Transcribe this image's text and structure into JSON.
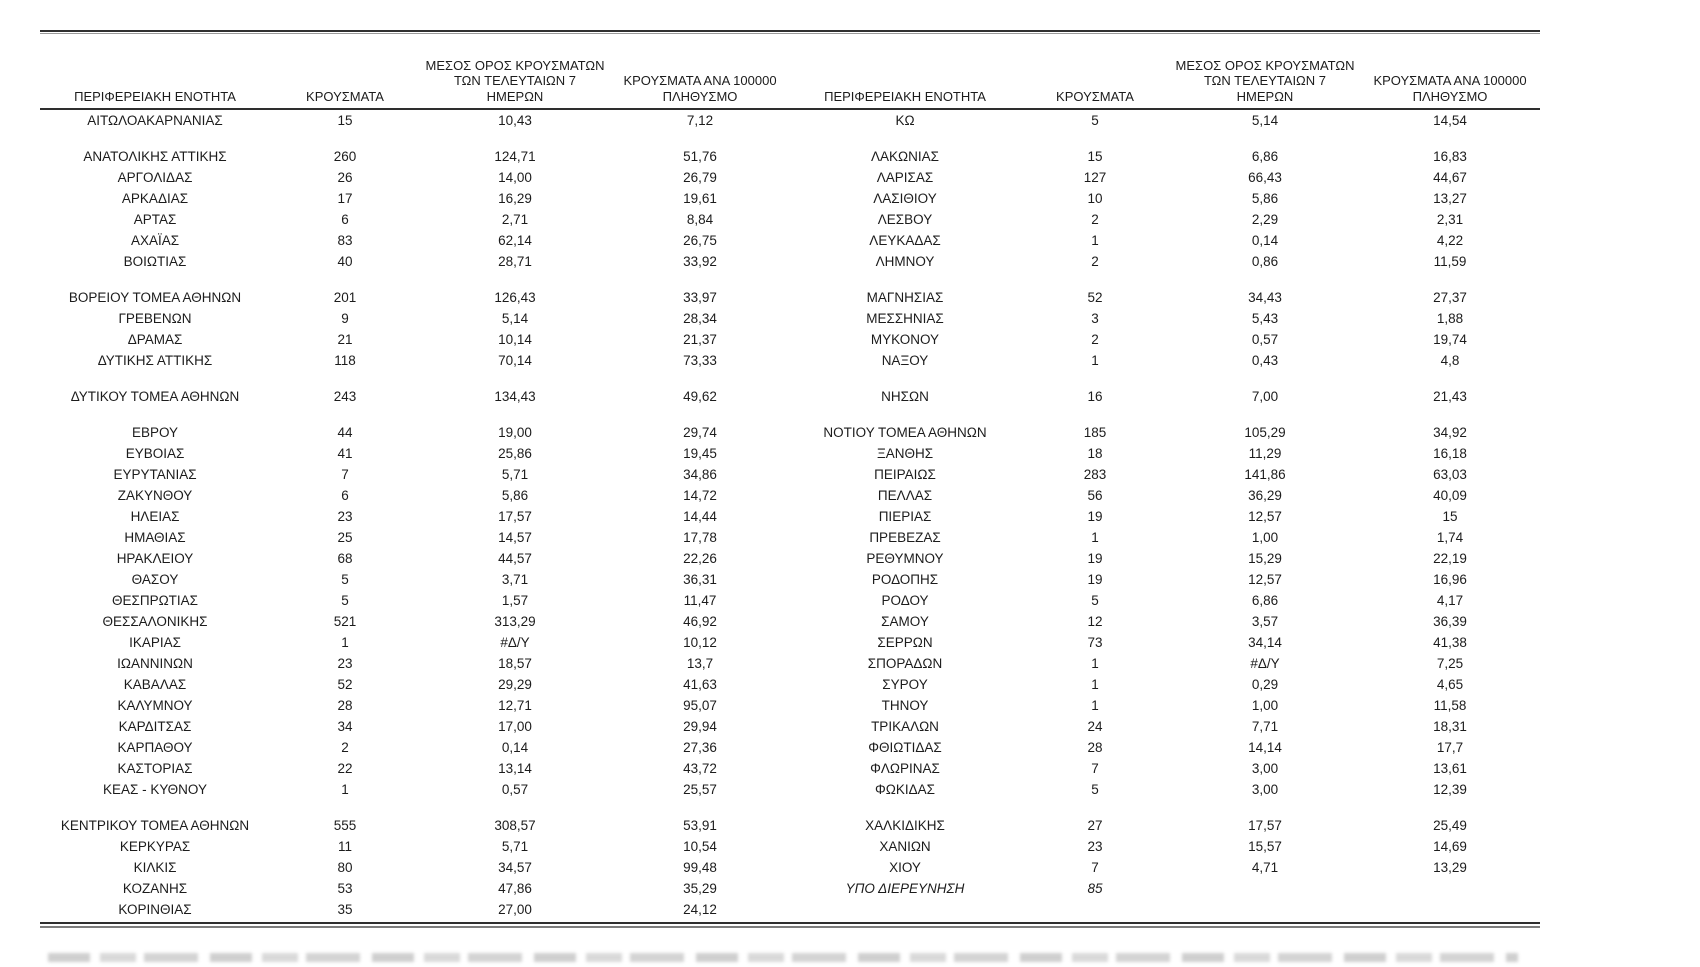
{
  "table": {
    "column_headers": {
      "region": "ΠΕΡΙΦΕΡΕΙΑΚΗ ΕΝΟΤΗΤΑ",
      "cases": "ΚΡΟΥΣΜΑΤΑ",
      "avg7": "ΜΕΣΟΣ ΟΡΟΣ ΚΡΟΥΣΜΑΤΩΝ\nΤΩΝ ΤΕΛΕΥΤΑΙΩΝ 7\nΗΜΕΡΩΝ",
      "per100k": "ΚΡΟΥΣΜΑΤΑ ΑΝΑ 100000\nΠΛΗΘΥΣΜΟ"
    },
    "missing_value_marker": "#Δ/Υ",
    "rows": [
      {
        "left": {
          "region": "ΑΙΤΩΛΟΑΚΑΡΝΑΝΙΑΣ",
          "cases": "15",
          "avg7": "10,43",
          "per100k": "7,12"
        },
        "right": {
          "region": "ΚΩ",
          "cases": "5",
          "avg7": "5,14",
          "per100k": "14,54"
        }
      },
      "gap",
      {
        "left": {
          "region": "ΑΝΑΤΟΛΙΚΗΣ ΑΤΤΙΚΗΣ",
          "cases": "260",
          "avg7": "124,71",
          "per100k": "51,76"
        },
        "right": {
          "region": "ΛΑΚΩΝΙΑΣ",
          "cases": "15",
          "avg7": "6,86",
          "per100k": "16,83"
        }
      },
      {
        "left": {
          "region": "ΑΡΓΟΛΙΔΑΣ",
          "cases": "26",
          "avg7": "14,00",
          "per100k": "26,79"
        },
        "right": {
          "region": "ΛΑΡΙΣΑΣ",
          "cases": "127",
          "avg7": "66,43",
          "per100k": "44,67"
        }
      },
      {
        "left": {
          "region": "ΑΡΚΑΔΙΑΣ",
          "cases": "17",
          "avg7": "16,29",
          "per100k": "19,61"
        },
        "right": {
          "region": "ΛΑΣΙΘΙΟΥ",
          "cases": "10",
          "avg7": "5,86",
          "per100k": "13,27"
        }
      },
      {
        "left": {
          "region": "ΑΡΤΑΣ",
          "cases": "6",
          "avg7": "2,71",
          "per100k": "8,84"
        },
        "right": {
          "region": "ΛΕΣΒΟΥ",
          "cases": "2",
          "avg7": "2,29",
          "per100k": "2,31"
        }
      },
      {
        "left": {
          "region": "ΑΧΑΪΑΣ",
          "cases": "83",
          "avg7": "62,14",
          "per100k": "26,75"
        },
        "right": {
          "region": "ΛΕΥΚΑΔΑΣ",
          "cases": "1",
          "avg7": "0,14",
          "per100k": "4,22"
        }
      },
      {
        "left": {
          "region": "ΒΟΙΩΤΙΑΣ",
          "cases": "40",
          "avg7": "28,71",
          "per100k": "33,92"
        },
        "right": {
          "region": "ΛΗΜΝΟΥ",
          "cases": "2",
          "avg7": "0,86",
          "per100k": "11,59"
        }
      },
      "gap",
      {
        "left": {
          "region": "ΒΟΡΕΙΟΥ ΤΟΜΕΑ ΑΘΗΝΩΝ",
          "cases": "201",
          "avg7": "126,43",
          "per100k": "33,97"
        },
        "right": {
          "region": "ΜΑΓΝΗΣΙΑΣ",
          "cases": "52",
          "avg7": "34,43",
          "per100k": "27,37"
        }
      },
      {
        "left": {
          "region": "ΓΡΕΒΕΝΩΝ",
          "cases": "9",
          "avg7": "5,14",
          "per100k": "28,34"
        },
        "right": {
          "region": "ΜΕΣΣΗΝΙΑΣ",
          "cases": "3",
          "avg7": "5,43",
          "per100k": "1,88"
        }
      },
      {
        "left": {
          "region": "ΔΡΑΜΑΣ",
          "cases": "21",
          "avg7": "10,14",
          "per100k": "21,37"
        },
        "right": {
          "region": "ΜΥΚΟΝΟΥ",
          "cases": "2",
          "avg7": "0,57",
          "per100k": "19,74"
        }
      },
      {
        "left": {
          "region": "ΔΥΤΙΚΗΣ ΑΤΤΙΚΗΣ",
          "cases": "118",
          "avg7": "70,14",
          "per100k": "73,33"
        },
        "right": {
          "region": "ΝΑΞΟΥ",
          "cases": "1",
          "avg7": "0,43",
          "per100k": "4,8"
        }
      },
      "gap",
      {
        "left": {
          "region": "ΔΥΤΙΚΟΥ ΤΟΜΕΑ ΑΘΗΝΩΝ",
          "cases": "243",
          "avg7": "134,43",
          "per100k": "49,62"
        },
        "right": {
          "region": "ΝΗΣΩΝ",
          "cases": "16",
          "avg7": "7,00",
          "per100k": "21,43"
        }
      },
      "gap",
      {
        "left": {
          "region": "ΕΒΡΟΥ",
          "cases": "44",
          "avg7": "19,00",
          "per100k": "29,74"
        },
        "right": {
          "region": "ΝΟΤΙΟΥ ΤΟΜΕΑ ΑΘΗΝΩΝ",
          "cases": "185",
          "avg7": "105,29",
          "per100k": "34,92"
        }
      },
      {
        "left": {
          "region": "ΕΥΒΟΙΑΣ",
          "cases": "41",
          "avg7": "25,86",
          "per100k": "19,45"
        },
        "right": {
          "region": "ΞΑΝΘΗΣ",
          "cases": "18",
          "avg7": "11,29",
          "per100k": "16,18"
        }
      },
      {
        "left": {
          "region": "ΕΥΡΥΤΑΝΙΑΣ",
          "cases": "7",
          "avg7": "5,71",
          "per100k": "34,86"
        },
        "right": {
          "region": "ΠΕΙΡΑΙΩΣ",
          "cases": "283",
          "avg7": "141,86",
          "per100k": "63,03"
        }
      },
      {
        "left": {
          "region": "ΖΑΚΥΝΘΟΥ",
          "cases": "6",
          "avg7": "5,86",
          "per100k": "14,72"
        },
        "right": {
          "region": "ΠΕΛΛΑΣ",
          "cases": "56",
          "avg7": "36,29",
          "per100k": "40,09"
        }
      },
      {
        "left": {
          "region": "ΗΛΕΙΑΣ",
          "cases": "23",
          "avg7": "17,57",
          "per100k": "14,44"
        },
        "right": {
          "region": "ΠΙΕΡΙΑΣ",
          "cases": "19",
          "avg7": "12,57",
          "per100k": "15"
        }
      },
      {
        "left": {
          "region": "ΗΜΑΘΙΑΣ",
          "cases": "25",
          "avg7": "14,57",
          "per100k": "17,78"
        },
        "right": {
          "region": "ΠΡΕΒΕΖΑΣ",
          "cases": "1",
          "avg7": "1,00",
          "per100k": "1,74"
        }
      },
      {
        "left": {
          "region": "ΗΡΑΚΛΕΙΟΥ",
          "cases": "68",
          "avg7": "44,57",
          "per100k": "22,26"
        },
        "right": {
          "region": "ΡΕΘΥΜΝΟΥ",
          "cases": "19",
          "avg7": "15,29",
          "per100k": "22,19"
        }
      },
      {
        "left": {
          "region": "ΘΑΣΟΥ",
          "cases": "5",
          "avg7": "3,71",
          "per100k": "36,31"
        },
        "right": {
          "region": "ΡΟΔΟΠΗΣ",
          "cases": "19",
          "avg7": "12,57",
          "per100k": "16,96"
        }
      },
      {
        "left": {
          "region": "ΘΕΣΠΡΩΤΙΑΣ",
          "cases": "5",
          "avg7": "1,57",
          "per100k": "11,47"
        },
        "right": {
          "region": "ΡΟΔΟΥ",
          "cases": "5",
          "avg7": "6,86",
          "per100k": "4,17"
        }
      },
      {
        "left": {
          "region": "ΘΕΣΣΑΛΟΝΙΚΗΣ",
          "cases": "521",
          "avg7": "313,29",
          "per100k": "46,92"
        },
        "right": {
          "region": "ΣΑΜΟΥ",
          "cases": "12",
          "avg7": "3,57",
          "per100k": "36,39"
        }
      },
      {
        "left": {
          "region": "ΙΚΑΡΙΑΣ",
          "cases": "1",
          "avg7": "#Δ/Υ",
          "per100k": "10,12"
        },
        "right": {
          "region": "ΣΕΡΡΩΝ",
          "cases": "73",
          "avg7": "34,14",
          "per100k": "41,38"
        }
      },
      {
        "left": {
          "region": "ΙΩΑΝΝΙΝΩΝ",
          "cases": "23",
          "avg7": "18,57",
          "per100k": "13,7"
        },
        "right": {
          "region": "ΣΠΟΡΑΔΩΝ",
          "cases": "1",
          "avg7": "#Δ/Υ",
          "per100k": "7,25"
        }
      },
      {
        "left": {
          "region": "ΚΑΒΑΛΑΣ",
          "cases": "52",
          "avg7": "29,29",
          "per100k": "41,63"
        },
        "right": {
          "region": "ΣΥΡΟΥ",
          "cases": "1",
          "avg7": "0,29",
          "per100k": "4,65"
        }
      },
      {
        "left": {
          "region": "ΚΑΛΥΜΝΟΥ",
          "cases": "28",
          "avg7": "12,71",
          "per100k": "95,07"
        },
        "right": {
          "region": "ΤΗΝΟΥ",
          "cases": "1",
          "avg7": "1,00",
          "per100k": "11,58"
        }
      },
      {
        "left": {
          "region": "ΚΑΡΔΙΤΣΑΣ",
          "cases": "34",
          "avg7": "17,00",
          "per100k": "29,94"
        },
        "right": {
          "region": "ΤΡΙΚΑΛΩΝ",
          "cases": "24",
          "avg7": "7,71",
          "per100k": "18,31"
        }
      },
      {
        "left": {
          "region": "ΚΑΡΠΑΘΟΥ",
          "cases": "2",
          "avg7": "0,14",
          "per100k": "27,36"
        },
        "right": {
          "region": "ΦΘΙΩΤΙΔΑΣ",
          "cases": "28",
          "avg7": "14,14",
          "per100k": "17,7"
        }
      },
      {
        "left": {
          "region": "ΚΑΣΤΟΡΙΑΣ",
          "cases": "22",
          "avg7": "13,14",
          "per100k": "43,72"
        },
        "right": {
          "region": "ΦΛΩΡΙΝΑΣ",
          "cases": "7",
          "avg7": "3,00",
          "per100k": "13,61"
        }
      },
      {
        "left": {
          "region": "ΚΕΑΣ - ΚΥΘΝΟΥ",
          "cases": "1",
          "avg7": "0,57",
          "per100k": "25,57"
        },
        "right": {
          "region": "ΦΩΚΙΔΑΣ",
          "cases": "5",
          "avg7": "3,00",
          "per100k": "12,39"
        }
      },
      "gap",
      {
        "left": {
          "region": "ΚΕΝΤΡΙΚΟΥ ΤΟΜΕΑ ΑΘΗΝΩΝ",
          "cases": "555",
          "avg7": "308,57",
          "per100k": "53,91"
        },
        "right": {
          "region": "ΧΑΛΚΙΔΙΚΗΣ",
          "cases": "27",
          "avg7": "17,57",
          "per100k": "25,49"
        }
      },
      {
        "left": {
          "region": "ΚΕΡΚΥΡΑΣ",
          "cases": "11",
          "avg7": "5,71",
          "per100k": "10,54"
        },
        "right": {
          "region": "ΧΑΝΙΩΝ",
          "cases": "23",
          "avg7": "15,57",
          "per100k": "14,69"
        }
      },
      {
        "left": {
          "region": "ΚΙΛΚΙΣ",
          "cases": "80",
          "avg7": "34,57",
          "per100k": "99,48"
        },
        "right": {
          "region": "ΧΙΟΥ",
          "cases": "7",
          "avg7": "4,71",
          "per100k": "13,29"
        }
      },
      {
        "left": {
          "region": "ΚΟΖΑΝΗΣ",
          "cases": "53",
          "avg7": "47,86",
          "per100k": "35,29"
        },
        "right": {
          "region": "ΥΠΟ ΔΙΕΡΕΥΝΗΣΗ",
          "cases": "85",
          "avg7": "",
          "per100k": "",
          "italic": true
        }
      },
      {
        "left": {
          "region": "ΚΟΡΙΝΘΙΑΣ",
          "cases": "35",
          "avg7": "27,00",
          "per100k": "24,12"
        },
        "right": null
      }
    ]
  }
}
